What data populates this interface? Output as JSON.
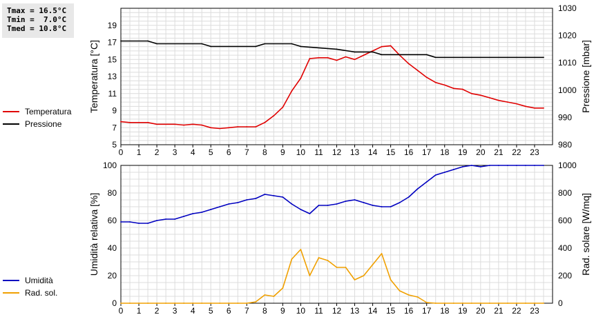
{
  "stats": {
    "tmax": "Tmax = 16.5°C",
    "tmin": "Tmin =  7.0°C",
    "tmed": "Tmed = 10.8°C"
  },
  "chart_data": [
    {
      "type": "line",
      "xlabel": "",
      "xlim": [
        0,
        24
      ],
      "xticks": [
        "0",
        "1",
        "2",
        "3",
        "4",
        "5",
        "6",
        "7",
        "8",
        "9",
        "10",
        "11",
        "12",
        "13",
        "14",
        "15",
        "16",
        "17",
        "18",
        "19",
        "20",
        "21",
        "22",
        "23"
      ],
      "ylabel": "Temperatura [°C]",
      "ylim": [
        5,
        21
      ],
      "yticks": [
        "5",
        "7",
        "9",
        "11",
        "13",
        "15",
        "17",
        "19"
      ],
      "y2label": "Pressione [mbar]",
      "y2lim": [
        980,
        1030
      ],
      "y2ticks": [
        "980",
        "990",
        "1000",
        "1010",
        "1020",
        "1030"
      ],
      "grid": true,
      "legend_placement": "left",
      "series": [
        {
          "name": "Temperatura",
          "color": "#e00000",
          "axis": "left",
          "x": [
            0,
            0.5,
            1,
            1.5,
            2,
            2.5,
            3,
            3.5,
            4,
            4.5,
            5,
            5.5,
            6,
            6.5,
            7,
            7.5,
            8,
            8.5,
            9,
            9.5,
            10,
            10.5,
            11,
            11.5,
            12,
            12.5,
            13,
            13.5,
            14,
            14.5,
            15,
            15.5,
            16,
            16.5,
            17,
            17.5,
            18,
            18.5,
            19,
            19.5,
            20,
            20.5,
            21,
            21.5,
            22,
            22.5,
            23,
            23.5
          ],
          "y": [
            7.7,
            7.6,
            7.6,
            7.6,
            7.4,
            7.4,
            7.4,
            7.3,
            7.4,
            7.3,
            7.0,
            6.9,
            7.0,
            7.1,
            7.1,
            7.1,
            7.6,
            8.4,
            9.4,
            11.3,
            12.8,
            15.1,
            15.2,
            15.2,
            14.9,
            15.3,
            15.0,
            15.5,
            16.0,
            16.5,
            16.6,
            15.5,
            14.5,
            13.7,
            12.9,
            12.3,
            12.0,
            11.6,
            11.5,
            11.0,
            10.8,
            10.5,
            10.2,
            10.0,
            9.8,
            9.5,
            9.3,
            9.3
          ]
        },
        {
          "name": "Pressione",
          "color": "#000000",
          "axis": "right",
          "x": [
            0,
            1.5,
            2,
            4.5,
            5,
            7.5,
            8,
            9.5,
            10,
            12,
            13,
            14,
            14.5,
            16.5,
            17,
            17.5,
            23.5
          ],
          "y": [
            1018,
            1018,
            1017,
            1017,
            1016,
            1016,
            1017,
            1017,
            1016,
            1015,
            1014,
            1014,
            1013,
            1013,
            1013,
            1012,
            1012
          ]
        }
      ]
    },
    {
      "type": "line",
      "xlabel": "",
      "xlim": [
        0,
        24
      ],
      "xticks": [
        "0",
        "1",
        "2",
        "3",
        "4",
        "5",
        "6",
        "7",
        "8",
        "9",
        "10",
        "11",
        "12",
        "13",
        "14",
        "15",
        "16",
        "17",
        "18",
        "19",
        "20",
        "21",
        "22",
        "23"
      ],
      "ylabel": "Umidità relativa [%]",
      "ylim": [
        0,
        100
      ],
      "yticks": [
        "0",
        "20",
        "40",
        "60",
        "80",
        "100"
      ],
      "y2label": "Rad. solare [W/mq]",
      "y2lim": [
        0,
        1000
      ],
      "y2ticks": [
        "0",
        "200",
        "400",
        "600",
        "800",
        "1000"
      ],
      "grid": true,
      "legend_placement": "left",
      "series": [
        {
          "name": "Umidità",
          "color": "#0000c0",
          "axis": "left",
          "x": [
            0,
            0.5,
            1,
            1.5,
            2,
            2.5,
            3,
            3.5,
            4,
            4.5,
            5,
            5.5,
            6,
            6.5,
            7,
            7.5,
            8,
            8.5,
            9,
            9.5,
            10,
            10.5,
            11,
            11.5,
            12,
            12.5,
            13,
            13.5,
            14,
            14.5,
            15,
            15.5,
            16,
            16.5,
            17,
            17.5,
            18,
            18.5,
            19,
            19.5,
            20,
            20.5,
            21,
            21.5,
            22,
            22.5,
            23,
            23.5
          ],
          "y": [
            59,
            59,
            58,
            58,
            60,
            61,
            61,
            63,
            65,
            66,
            68,
            70,
            72,
            73,
            75,
            76,
            79,
            78,
            77,
            72,
            68,
            65,
            71,
            71,
            72,
            74,
            75,
            73,
            71,
            70,
            70,
            73,
            77,
            83,
            88,
            93,
            95,
            97,
            99,
            100,
            99,
            100,
            100,
            100,
            100,
            100,
            100,
            100
          ]
        },
        {
          "name": "Rad. sol.",
          "color": "#f0a000",
          "axis": "right",
          "x": [
            0,
            0.5,
            1,
            1.5,
            2,
            2.5,
            3,
            3.5,
            4,
            4.5,
            5,
            5.5,
            6,
            6.5,
            7,
            7.5,
            8,
            8.5,
            9,
            9.5,
            10,
            10.5,
            11,
            11.5,
            12,
            12.5,
            13,
            13.5,
            14,
            14.5,
            15,
            15.5,
            16,
            16.5,
            17,
            17.5,
            18,
            18.5,
            19,
            19.5,
            20,
            20.5,
            21,
            21.5,
            22,
            22.5,
            23,
            23.5
          ],
          "y": [
            0,
            0,
            0,
            0,
            0,
            0,
            0,
            0,
            0,
            0,
            0,
            0,
            0,
            0,
            0,
            10,
            60,
            50,
            110,
            320,
            390,
            200,
            330,
            310,
            260,
            260,
            170,
            200,
            280,
            360,
            170,
            90,
            60,
            45,
            5,
            0,
            0,
            0,
            0,
            0,
            0,
            0,
            0,
            0,
            0,
            0,
            0,
            0
          ]
        }
      ]
    }
  ]
}
